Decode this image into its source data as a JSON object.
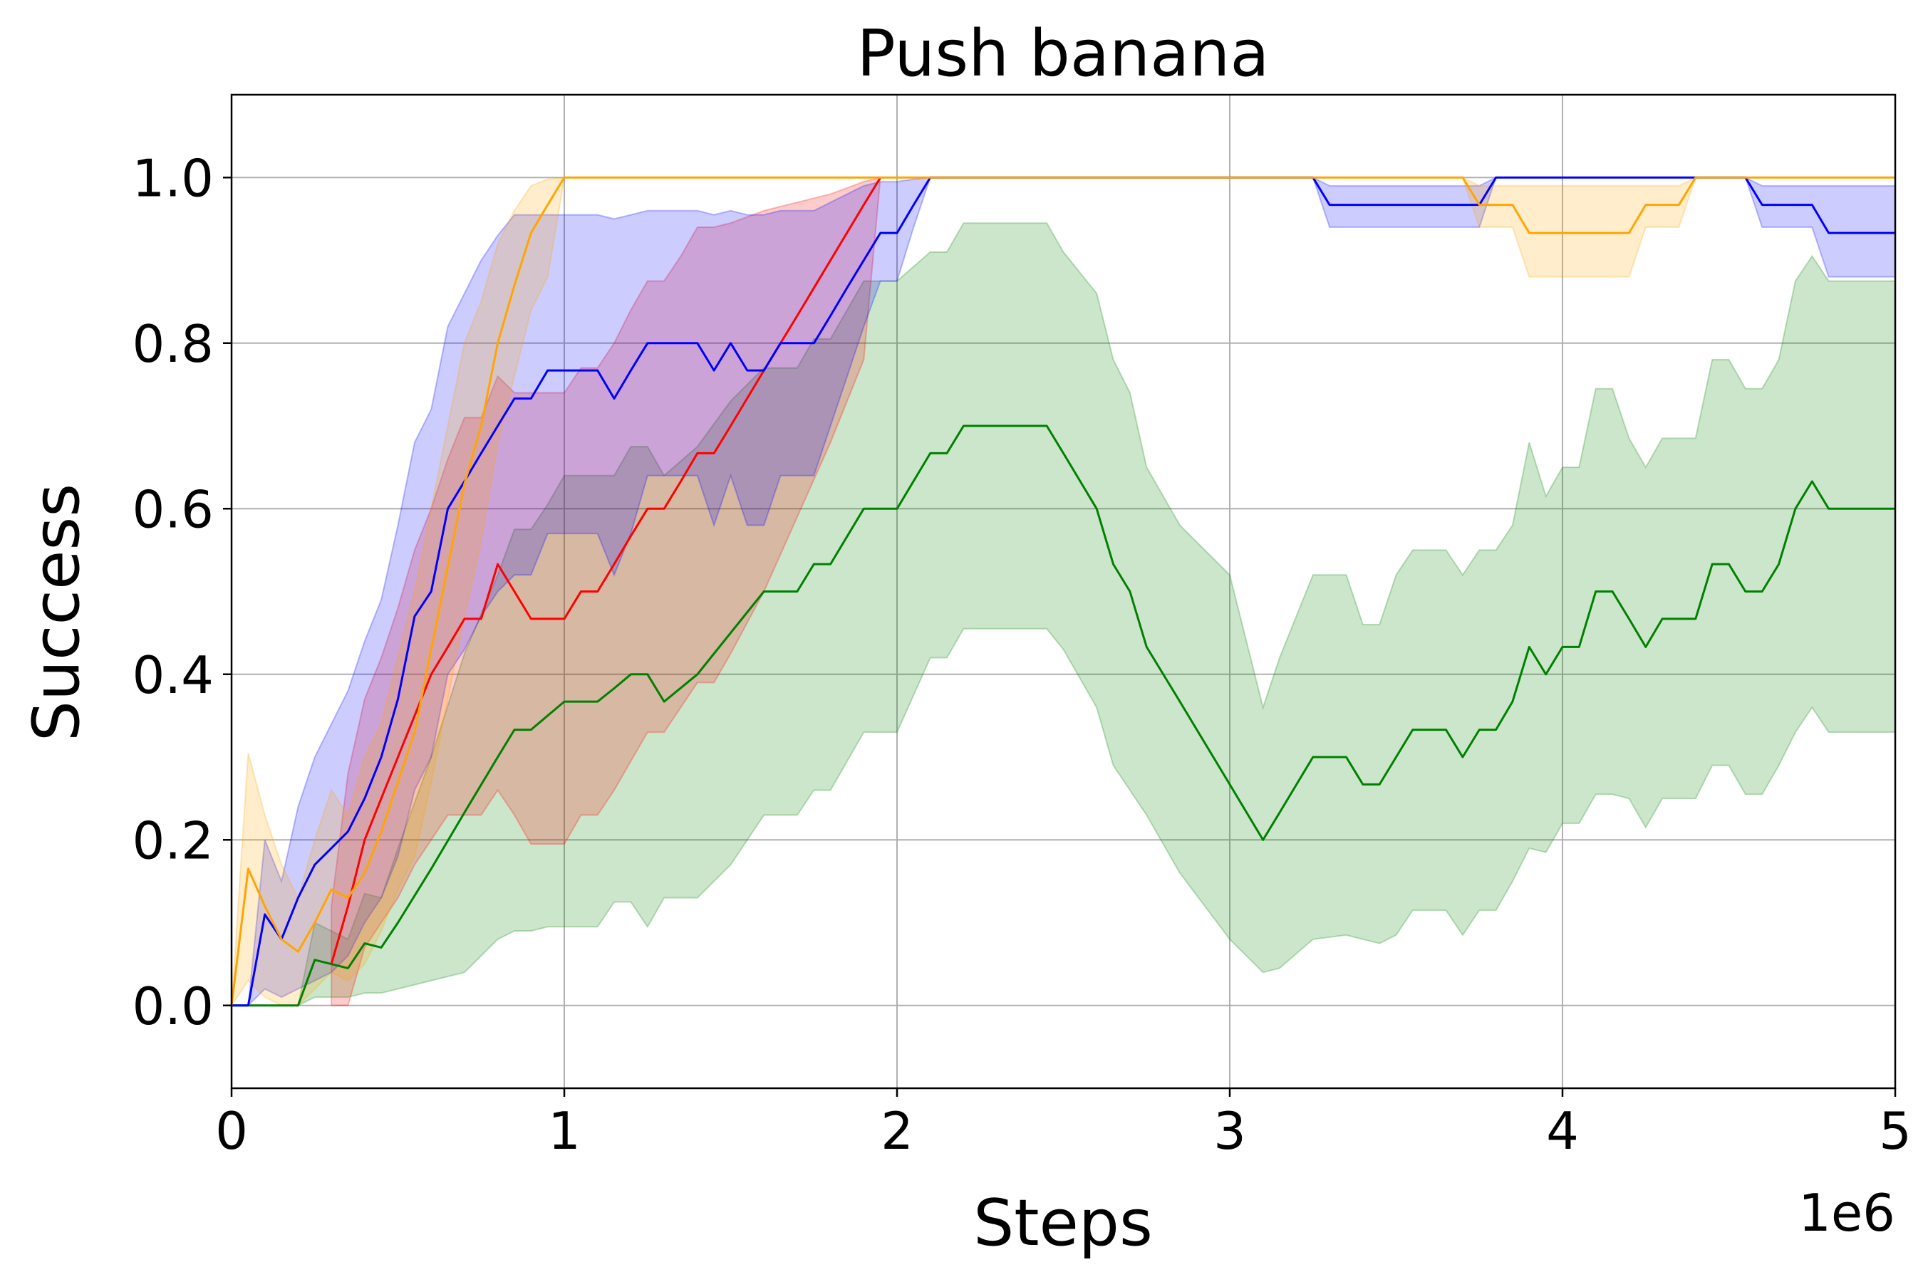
{
  "chart_data": {
    "type": "line",
    "title": "Push banana",
    "xlabel": "Steps",
    "ylabel": "Success",
    "x_offset_label": "1e6",
    "xlim": [
      0,
      5
    ],
    "ylim": [
      -0.1,
      1.1
    ],
    "xticks": [
      0,
      1,
      2,
      3,
      4,
      5
    ],
    "xtick_labels": [
      "0",
      "1",
      "2",
      "3",
      "4",
      "5"
    ],
    "yticks": [
      0.0,
      0.2,
      0.4,
      0.6,
      0.8,
      1.0
    ],
    "ytick_labels": [
      "0.0",
      "0.2",
      "0.4",
      "0.6",
      "0.8",
      "1.0"
    ],
    "grid": true,
    "series": [
      {
        "color": "#008000",
        "band_color": "#008000",
        "x": [
          0.0,
          0.2,
          0.25,
          0.35,
          0.4,
          0.45,
          0.5,
          0.6,
          0.7,
          0.8,
          0.85,
          0.9,
          0.95,
          1.0,
          1.1,
          1.15,
          1.2,
          1.25,
          1.3,
          1.4,
          1.5,
          1.6,
          1.7,
          1.75,
          1.8,
          1.9,
          2.0,
          2.1,
          2.15,
          2.2,
          2.3,
          2.4,
          2.45,
          2.5,
          2.6,
          2.65,
          2.7,
          2.75,
          2.85,
          3.0,
          3.1,
          3.15,
          3.25,
          3.35,
          3.4,
          3.45,
          3.5,
          3.55,
          3.65,
          3.7,
          3.75,
          3.8,
          3.85,
          3.9,
          3.95,
          4.0,
          4.05,
          4.1,
          4.15,
          4.2,
          4.25,
          4.3,
          4.35,
          4.4,
          4.45,
          4.5,
          4.55,
          4.6,
          4.65,
          4.7,
          4.75,
          4.8,
          4.85,
          5.0
        ],
        "y": [
          0.0,
          0.0,
          0.055,
          0.045,
          0.075,
          0.07,
          0.1,
          0.165,
          0.233,
          0.3,
          0.333,
          0.333,
          0.35,
          0.367,
          0.367,
          0.383,
          0.4,
          0.4,
          0.367,
          0.4,
          0.45,
          0.5,
          0.5,
          0.533,
          0.533,
          0.6,
          0.6,
          0.667,
          0.667,
          0.7,
          0.7,
          0.7,
          0.7,
          0.667,
          0.6,
          0.533,
          0.5,
          0.433,
          0.367,
          0.267,
          0.2,
          0.233,
          0.3,
          0.3,
          0.267,
          0.267,
          0.3,
          0.333,
          0.333,
          0.3,
          0.333,
          0.333,
          0.367,
          0.433,
          0.4,
          0.433,
          0.433,
          0.5,
          0.5,
          0.467,
          0.433,
          0.467,
          0.467,
          0.467,
          0.533,
          0.533,
          0.5,
          0.5,
          0.533,
          0.6,
          0.633,
          0.6,
          0.6,
          0.6
        ],
        "lower": [
          0.0,
          0.0,
          0.01,
          0.01,
          0.015,
          0.015,
          0.02,
          0.03,
          0.04,
          0.08,
          0.09,
          0.09,
          0.095,
          0.095,
          0.095,
          0.125,
          0.125,
          0.095,
          0.13,
          0.13,
          0.17,
          0.23,
          0.23,
          0.26,
          0.26,
          0.33,
          0.33,
          0.42,
          0.42,
          0.455,
          0.455,
          0.455,
          0.455,
          0.43,
          0.36,
          0.29,
          0.26,
          0.23,
          0.16,
          0.08,
          0.04,
          0.045,
          0.08,
          0.085,
          0.08,
          0.075,
          0.085,
          0.115,
          0.115,
          0.085,
          0.115,
          0.115,
          0.15,
          0.19,
          0.185,
          0.22,
          0.22,
          0.255,
          0.255,
          0.25,
          0.215,
          0.25,
          0.25,
          0.25,
          0.29,
          0.29,
          0.255,
          0.255,
          0.29,
          0.33,
          0.36,
          0.33,
          0.33,
          0.33
        ],
        "upper": [
          0.0,
          0.0,
          0.1,
          0.08,
          0.135,
          0.13,
          0.19,
          0.3,
          0.425,
          0.52,
          0.575,
          0.575,
          0.605,
          0.64,
          0.64,
          0.64,
          0.675,
          0.675,
          0.64,
          0.675,
          0.73,
          0.77,
          0.77,
          0.805,
          0.805,
          0.875,
          0.875,
          0.91,
          0.91,
          0.945,
          0.945,
          0.945,
          0.945,
          0.91,
          0.86,
          0.78,
          0.74,
          0.65,
          0.58,
          0.52,
          0.36,
          0.42,
          0.52,
          0.52,
          0.46,
          0.46,
          0.52,
          0.55,
          0.55,
          0.52,
          0.55,
          0.55,
          0.58,
          0.68,
          0.615,
          0.65,
          0.65,
          0.745,
          0.745,
          0.685,
          0.65,
          0.685,
          0.685,
          0.685,
          0.78,
          0.78,
          0.745,
          0.745,
          0.78,
          0.875,
          0.905,
          0.875,
          0.875,
          0.875
        ]
      },
      {
        "color": "#ff0000",
        "band_color": "#ff0000",
        "x": [
          0.3,
          0.35,
          0.4,
          0.45,
          0.5,
          0.55,
          0.6,
          0.65,
          0.7,
          0.75,
          0.8,
          0.85,
          0.9,
          0.95,
          1.0,
          1.05,
          1.1,
          1.15,
          1.2,
          1.25,
          1.3,
          1.35,
          1.4,
          1.45,
          1.5,
          1.6,
          1.7,
          1.8,
          1.9,
          1.95
        ],
        "y": [
          0.05,
          0.12,
          0.2,
          0.25,
          0.3,
          0.35,
          0.4,
          0.433,
          0.467,
          0.467,
          0.533,
          0.5,
          0.467,
          0.467,
          0.467,
          0.5,
          0.5,
          0.533,
          0.567,
          0.6,
          0.6,
          0.633,
          0.667,
          0.667,
          0.7,
          0.767,
          0.833,
          0.9,
          0.967,
          1.0
        ],
        "lower": [
          0.0,
          0.0,
          0.07,
          0.1,
          0.13,
          0.17,
          0.2,
          0.23,
          0.23,
          0.23,
          0.26,
          0.23,
          0.195,
          0.195,
          0.195,
          0.23,
          0.23,
          0.26,
          0.295,
          0.33,
          0.33,
          0.36,
          0.39,
          0.39,
          0.425,
          0.5,
          0.59,
          0.68,
          0.78,
          1.0
        ],
        "upper": [
          0.12,
          0.28,
          0.37,
          0.42,
          0.48,
          0.55,
          0.6,
          0.66,
          0.71,
          0.71,
          0.76,
          0.74,
          0.74,
          0.74,
          0.74,
          0.77,
          0.77,
          0.8,
          0.84,
          0.875,
          0.875,
          0.905,
          0.94,
          0.94,
          0.945,
          0.96,
          0.97,
          0.98,
          0.995,
          1.0
        ]
      },
      {
        "color": "#0000ff",
        "band_color": "#0000ff",
        "x": [
          0.0,
          0.05,
          0.1,
          0.15,
          0.2,
          0.25,
          0.3,
          0.35,
          0.4,
          0.45,
          0.5,
          0.55,
          0.6,
          0.65,
          0.7,
          0.75,
          0.8,
          0.85,
          0.9,
          0.95,
          1.0,
          1.05,
          1.1,
          1.15,
          1.2,
          1.25,
          1.3,
          1.35,
          1.4,
          1.45,
          1.5,
          1.55,
          1.6,
          1.65,
          1.7,
          1.75,
          1.8,
          1.85,
          1.9,
          1.95,
          2.0,
          2.05,
          2.1,
          2.15,
          3.25,
          3.3,
          3.5,
          3.75,
          3.8,
          4.5,
          4.55,
          4.6,
          4.75,
          4.8,
          5.0
        ],
        "y": [
          0.0,
          0.0,
          0.11,
          0.08,
          0.13,
          0.17,
          0.19,
          0.21,
          0.25,
          0.3,
          0.37,
          0.47,
          0.5,
          0.6,
          0.633,
          0.667,
          0.7,
          0.733,
          0.733,
          0.767,
          0.767,
          0.767,
          0.767,
          0.733,
          0.767,
          0.8,
          0.8,
          0.8,
          0.8,
          0.767,
          0.8,
          0.767,
          0.767,
          0.8,
          0.8,
          0.8,
          0.833,
          0.867,
          0.9,
          0.933,
          0.933,
          0.967,
          1.0,
          1.0,
          1.0,
          0.967,
          0.967,
          0.967,
          1.0,
          1.0,
          1.0,
          0.967,
          0.967,
          0.933,
          0.933
        ],
        "lower": [
          0.0,
          0.0,
          0.02,
          0.01,
          0.02,
          0.03,
          0.04,
          0.06,
          0.1,
          0.13,
          0.18,
          0.26,
          0.3,
          0.4,
          0.43,
          0.47,
          0.5,
          0.52,
          0.52,
          0.57,
          0.57,
          0.57,
          0.57,
          0.52,
          0.57,
          0.64,
          0.64,
          0.64,
          0.64,
          0.58,
          0.64,
          0.58,
          0.58,
          0.64,
          0.64,
          0.64,
          0.7,
          0.76,
          0.82,
          0.875,
          0.875,
          0.94,
          1.0,
          1.0,
          1.0,
          0.94,
          0.94,
          0.94,
          1.0,
          1.0,
          1.0,
          0.94,
          0.94,
          0.88,
          0.88
        ],
        "upper": [
          0.0,
          0.0,
          0.2,
          0.15,
          0.24,
          0.3,
          0.34,
          0.38,
          0.44,
          0.49,
          0.58,
          0.68,
          0.72,
          0.82,
          0.86,
          0.9,
          0.93,
          0.955,
          0.955,
          0.955,
          0.955,
          0.955,
          0.955,
          0.95,
          0.955,
          0.96,
          0.96,
          0.96,
          0.96,
          0.955,
          0.96,
          0.955,
          0.955,
          0.96,
          0.96,
          0.96,
          0.97,
          0.98,
          0.99,
          0.995,
          0.995,
          0.998,
          1.0,
          1.0,
          1.0,
          0.99,
          0.99,
          0.99,
          1.0,
          1.0,
          1.0,
          0.99,
          0.99,
          0.99,
          0.99
        ]
      },
      {
        "color": "#ffa500",
        "band_color": "#ffa500",
        "x": [
          0.0,
          0.05,
          0.1,
          0.15,
          0.2,
          0.25,
          0.3,
          0.35,
          0.4,
          0.45,
          0.5,
          0.55,
          0.6,
          0.65,
          0.7,
          0.75,
          0.8,
          0.85,
          0.9,
          0.95,
          1.0,
          3.7,
          3.75,
          3.8,
          3.85,
          3.9,
          4.2,
          4.25,
          4.35,
          4.4,
          5.0
        ],
        "y": [
          0.0,
          0.165,
          0.12,
          0.08,
          0.065,
          0.1,
          0.14,
          0.13,
          0.16,
          0.21,
          0.27,
          0.33,
          0.43,
          0.53,
          0.63,
          0.7,
          0.8,
          0.87,
          0.933,
          0.967,
          1.0,
          1.0,
          0.967,
          0.967,
          0.967,
          0.933,
          0.933,
          0.967,
          0.967,
          1.0,
          1.0
        ],
        "lower": [
          0.0,
          0.03,
          0.01,
          0.0,
          0.0,
          0.02,
          0.04,
          0.03,
          0.05,
          0.09,
          0.14,
          0.18,
          0.27,
          0.37,
          0.47,
          0.56,
          0.68,
          0.76,
          0.84,
          0.88,
          1.0,
          1.0,
          0.94,
          0.94,
          0.94,
          0.88,
          0.88,
          0.94,
          0.94,
          1.0,
          1.0
        ],
        "upper": [
          0.0,
          0.305,
          0.23,
          0.17,
          0.13,
          0.2,
          0.26,
          0.23,
          0.3,
          0.34,
          0.42,
          0.5,
          0.6,
          0.7,
          0.8,
          0.85,
          0.92,
          0.96,
          0.99,
          0.998,
          1.0,
          1.0,
          0.99,
          0.99,
          0.99,
          0.99,
          0.99,
          0.99,
          0.99,
          1.0,
          1.0
        ]
      }
    ]
  }
}
